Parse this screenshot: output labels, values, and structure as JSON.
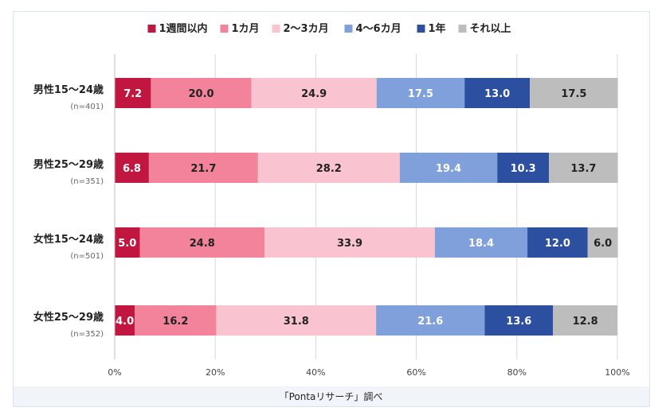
{
  "chart_data": {
    "type": "bar",
    "orientation": "horizontal",
    "stacked": true,
    "legend_position": "top",
    "x_ticks": [
      "0%",
      "20%",
      "40%",
      "60%",
      "80%",
      "100%"
    ],
    "xlim": [
      0,
      100
    ],
    "grid": true,
    "categories": [
      {
        "label": "男性15～24歳",
        "n": "(n=401)"
      },
      {
        "label": "男性25～29歳",
        "n": "(n=351)"
      },
      {
        "label": "女性15～24歳",
        "n": "(n=501)"
      },
      {
        "label": "女性25～29歳",
        "n": "(n=352)"
      }
    ],
    "series": [
      {
        "name": "1週間以内",
        "color": "#c0163f",
        "text_color": "#ffffff",
        "values": [
          7.2,
          6.8,
          5.0,
          4.0
        ]
      },
      {
        "name": "1カ月",
        "color": "#f2839a",
        "text_color": "#222222",
        "values": [
          20.0,
          21.7,
          24.8,
          16.2
        ]
      },
      {
        "name": "2～3カ月",
        "color": "#f9c3d0",
        "text_color": "#222222",
        "values": [
          24.9,
          28.2,
          33.9,
          31.8
        ]
      },
      {
        "name": "4～6カ月",
        "color": "#7fa0da",
        "text_color": "#ffffff",
        "values": [
          17.5,
          19.4,
          18.4,
          21.6
        ]
      },
      {
        "name": "1年",
        "color": "#2d4fa0",
        "text_color": "#ffffff",
        "values": [
          13.0,
          10.3,
          12.0,
          13.6
        ]
      },
      {
        "name": "それ以上",
        "color": "#bdbdbd",
        "text_color": "#222222",
        "values": [
          17.5,
          13.7,
          6.0,
          12.8
        ]
      }
    ]
  },
  "source": "「Pontaリサーチ」調べ"
}
